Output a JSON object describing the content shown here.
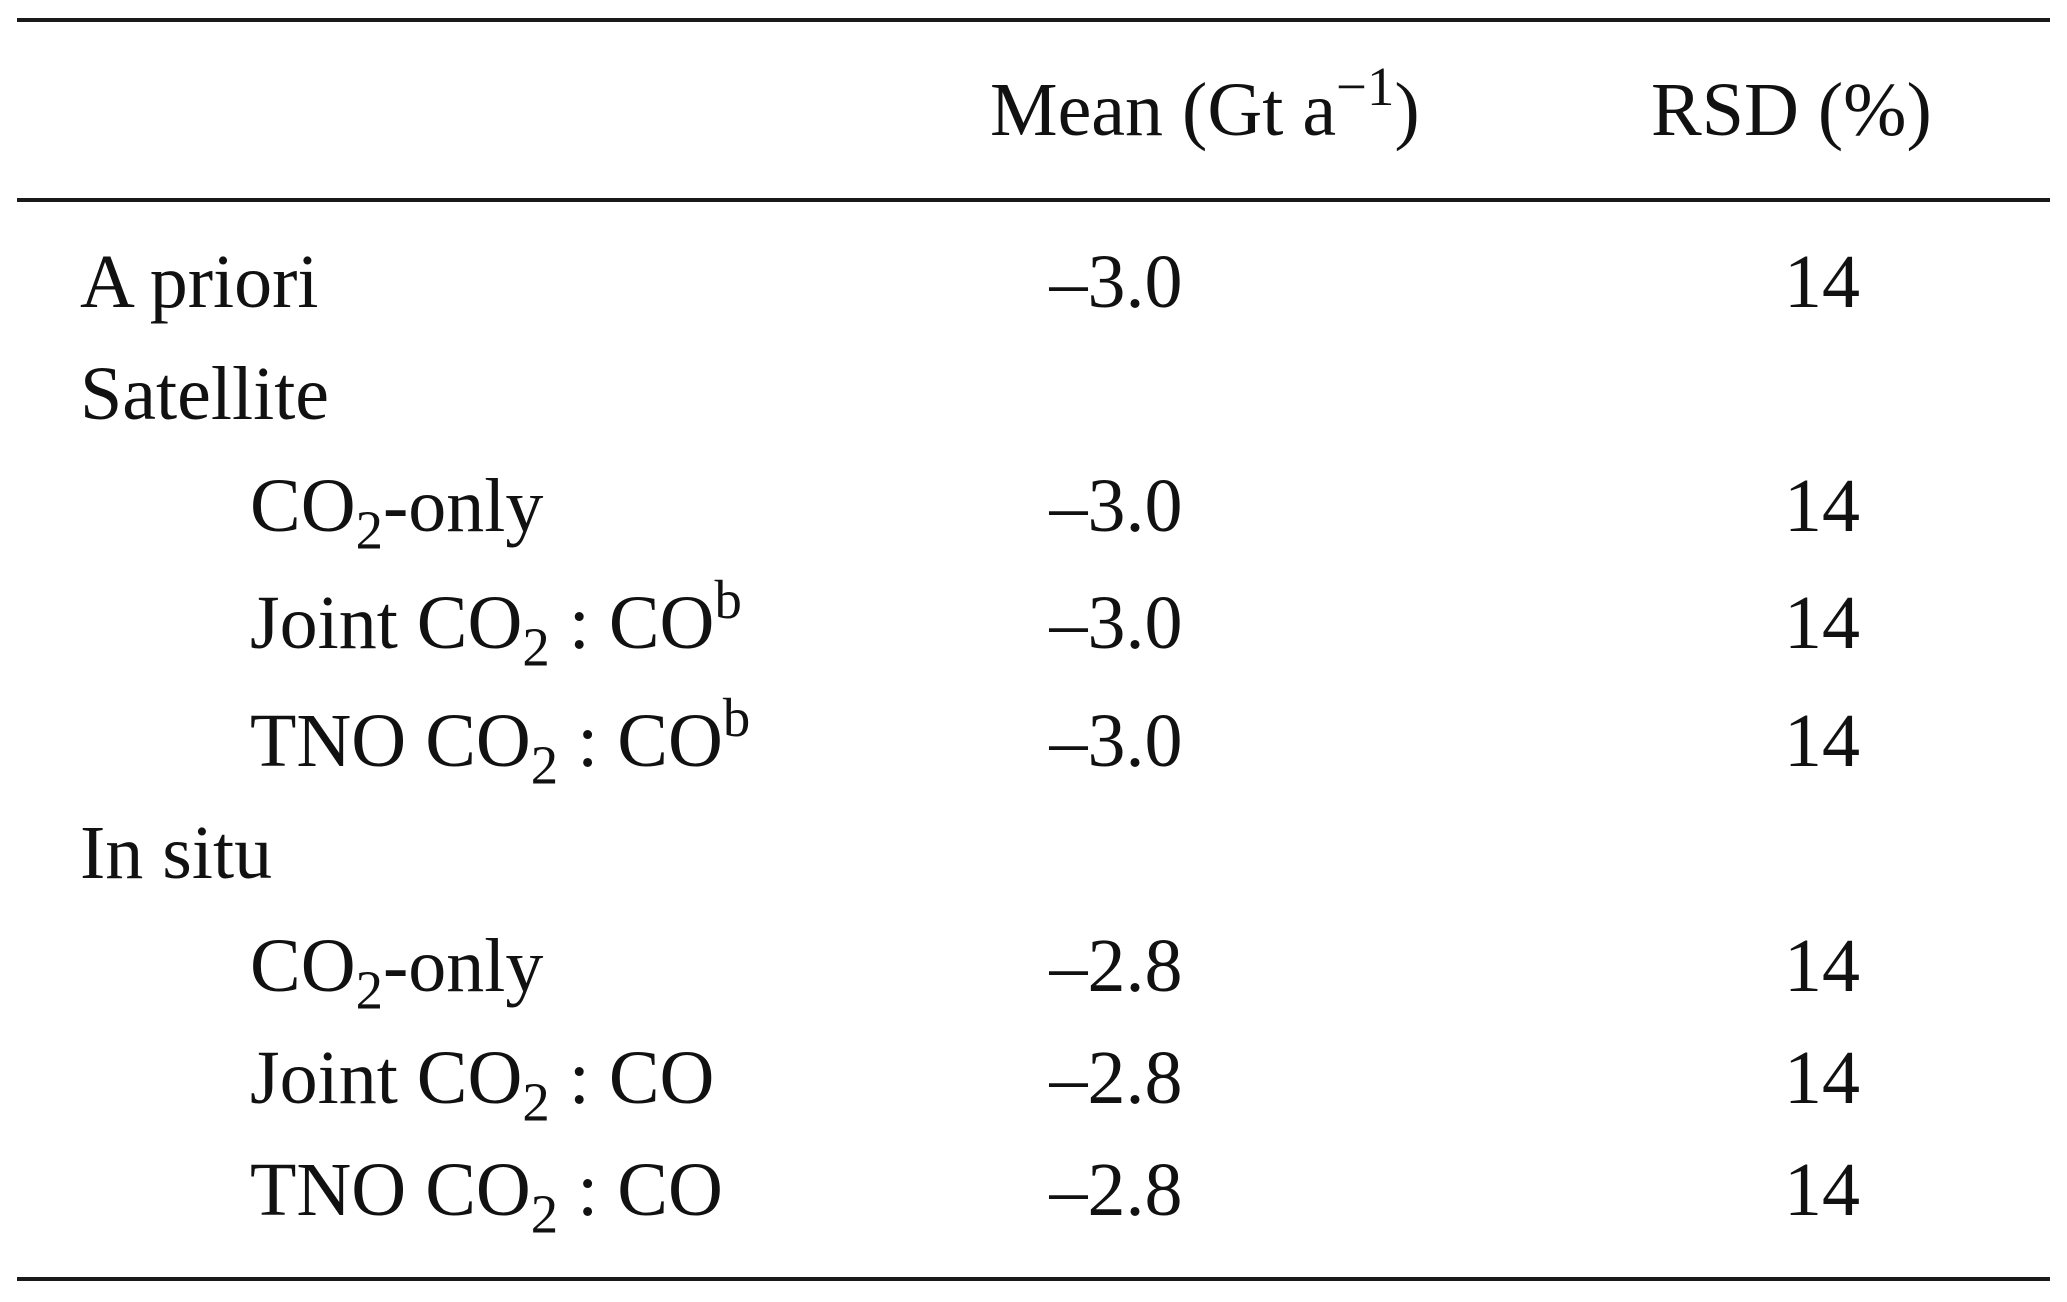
{
  "table": {
    "headers": {
      "mean_prefix": "Mean (Gt a",
      "mean_exponent": "−1",
      "mean_suffix": ")",
      "rsd": "RSD (%)"
    },
    "rows": [
      {
        "label": "A priori",
        "mean": "–3.0",
        "rsd": "14"
      },
      {
        "label": "Satellite"
      },
      {
        "species": "CO",
        "subscript": "2",
        "tail": "-only",
        "mean": "–3.0",
        "rsd": "14"
      },
      {
        "prefix": "Joint CO",
        "subscript": "2",
        "tail": " : CO",
        "footnote": "b",
        "mean": "–3.0",
        "rsd": "14"
      },
      {
        "prefix": "TNO CO",
        "subscript": "2",
        "tail": " : CO",
        "footnote": "b",
        "mean": "–3.0",
        "rsd": "14"
      },
      {
        "label": "In situ"
      },
      {
        "species": "CO",
        "subscript": "2",
        "tail": "-only",
        "mean": "–2.8",
        "rsd": "14"
      },
      {
        "prefix": "Joint CO",
        "subscript": "2",
        "tail": " : CO",
        "mean": "–2.8",
        "rsd": "14"
      },
      {
        "prefix": "TNO CO",
        "subscript": "2",
        "tail": " : CO",
        "mean": "–2.8",
        "rsd": "14"
      }
    ]
  }
}
